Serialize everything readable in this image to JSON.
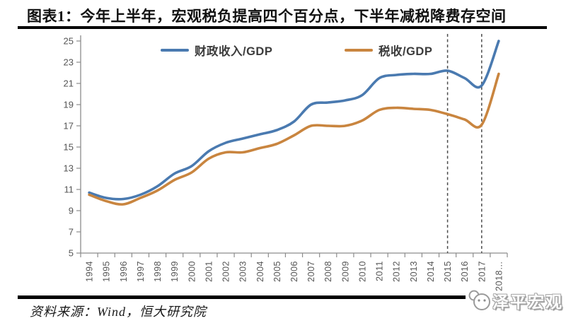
{
  "header": {
    "title": "图表1：今年上半年，宏观税负提高四个百分点，下半年减税降费存空间"
  },
  "chart_data": {
    "type": "line",
    "title": "图表1：今年上半年，宏观税负提高四个百分点，下半年减税降费存空间",
    "categories": [
      "1994",
      "1995",
      "1996",
      "1997",
      "1998",
      "1999",
      "2000",
      "2001",
      "2002",
      "2003",
      "2004",
      "2005",
      "2006",
      "2007",
      "2008",
      "2009",
      "2010",
      "2011",
      "2012",
      "2013",
      "2014",
      "2015",
      "2016",
      "2017",
      "2018…"
    ],
    "series": [
      {
        "name": "财政收入/GDP",
        "color": "#4a7ab0",
        "values": [
          10.7,
          10.2,
          10.1,
          10.5,
          11.3,
          12.5,
          13.2,
          14.6,
          15.4,
          15.8,
          16.2,
          16.6,
          17.4,
          19.0,
          19.2,
          19.4,
          19.9,
          21.5,
          21.8,
          21.9,
          21.9,
          22.2,
          21.5,
          20.8,
          25.0
        ]
      },
      {
        "name": "税收/GDP",
        "color": "#c9853f",
        "values": [
          10.5,
          9.9,
          9.6,
          10.2,
          10.9,
          11.9,
          12.6,
          13.9,
          14.5,
          14.5,
          14.9,
          15.3,
          16.1,
          17.0,
          17.0,
          17.0,
          17.5,
          18.5,
          18.7,
          18.6,
          18.5,
          18.1,
          17.6,
          17.1,
          21.9
        ]
      }
    ],
    "ylim": [
      5,
      25
    ],
    "yticks": [
      25,
      23,
      21,
      19,
      17,
      15,
      13,
      11,
      9,
      7,
      5
    ],
    "xlabel": "",
    "ylabel": "",
    "grid": false,
    "legend_position": "top-inside",
    "annotations": {
      "dashed_vlines": [
        "2015",
        "2017"
      ],
      "dashed_color": "#4d4d4d"
    },
    "axis_color": "#8c8c8c",
    "tick_label_color": "#555555"
  },
  "footer": {
    "source": "资料来源：Wind，恒大研究院",
    "logo_text": "泽平宏观"
  }
}
